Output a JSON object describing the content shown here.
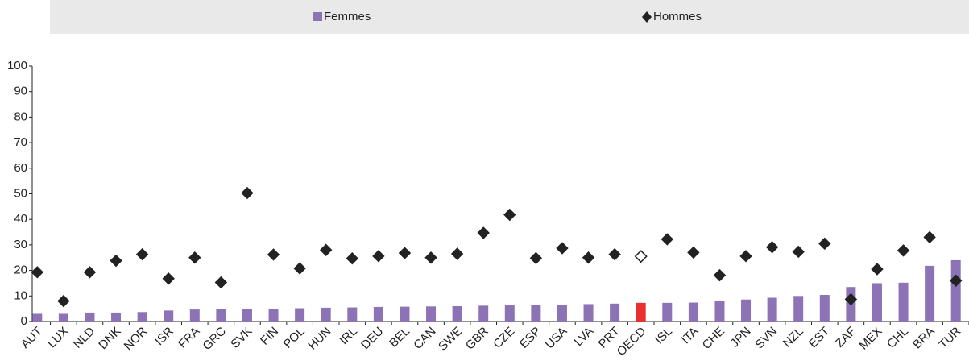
{
  "chart_data": {
    "type": "bar_marker",
    "categories": [
      "AUT",
      "LUX",
      "NLD",
      "DNK",
      "NOR",
      "ISR",
      "FRA",
      "GRC",
      "SVK",
      "FIN",
      "POL",
      "HUN",
      "IRL",
      "DEU",
      "BEL",
      "CAN",
      "SWE",
      "GBR",
      "CZE",
      "ESP",
      "USA",
      "LVA",
      "PRT",
      "OECD",
      "ISL",
      "ITA",
      "CHE",
      "JPN",
      "SVN",
      "NZL",
      "EST",
      "ZAF",
      "MEX",
      "CHL",
      "BRA",
      "TUR"
    ],
    "series": [
      {
        "name": "Femmes",
        "color": "#8b73b5",
        "values": [
          3,
          3,
          3.5,
          3.5,
          3.7,
          4.3,
          4.7,
          4.8,
          5,
          5,
          5.2,
          5.4,
          5.5,
          5.7,
          5.8,
          5.9,
          6,
          6.2,
          6.3,
          6.4,
          6.6,
          6.8,
          7,
          7.3,
          7.3,
          7.4,
          8,
          8.6,
          9.3,
          10,
          10.4,
          13.5,
          15,
          15.2,
          21.8,
          24
        ]
      },
      {
        "name": "Hommes",
        "color": "#222222",
        "values": [
          19.3,
          8,
          19.3,
          23.8,
          26.3,
          16.8,
          25,
          15.3,
          50.3,
          26.2,
          20.8,
          28,
          24.7,
          25.6,
          26.8,
          25,
          26.5,
          34.7,
          41.8,
          24.8,
          28.7,
          25,
          26.3,
          25.5,
          32.2,
          27,
          18.1,
          25.6,
          29.1,
          27.3,
          30.5,
          8.7,
          20.5,
          27.8,
          33,
          16
        ]
      }
    ],
    "highlight": {
      "category_index": 23,
      "color": "#e8312f"
    },
    "ylim": [
      0,
      100
    ],
    "yticks": [
      0,
      10,
      20,
      30,
      40,
      50,
      60,
      70,
      80,
      90,
      100
    ],
    "legend": "top"
  }
}
